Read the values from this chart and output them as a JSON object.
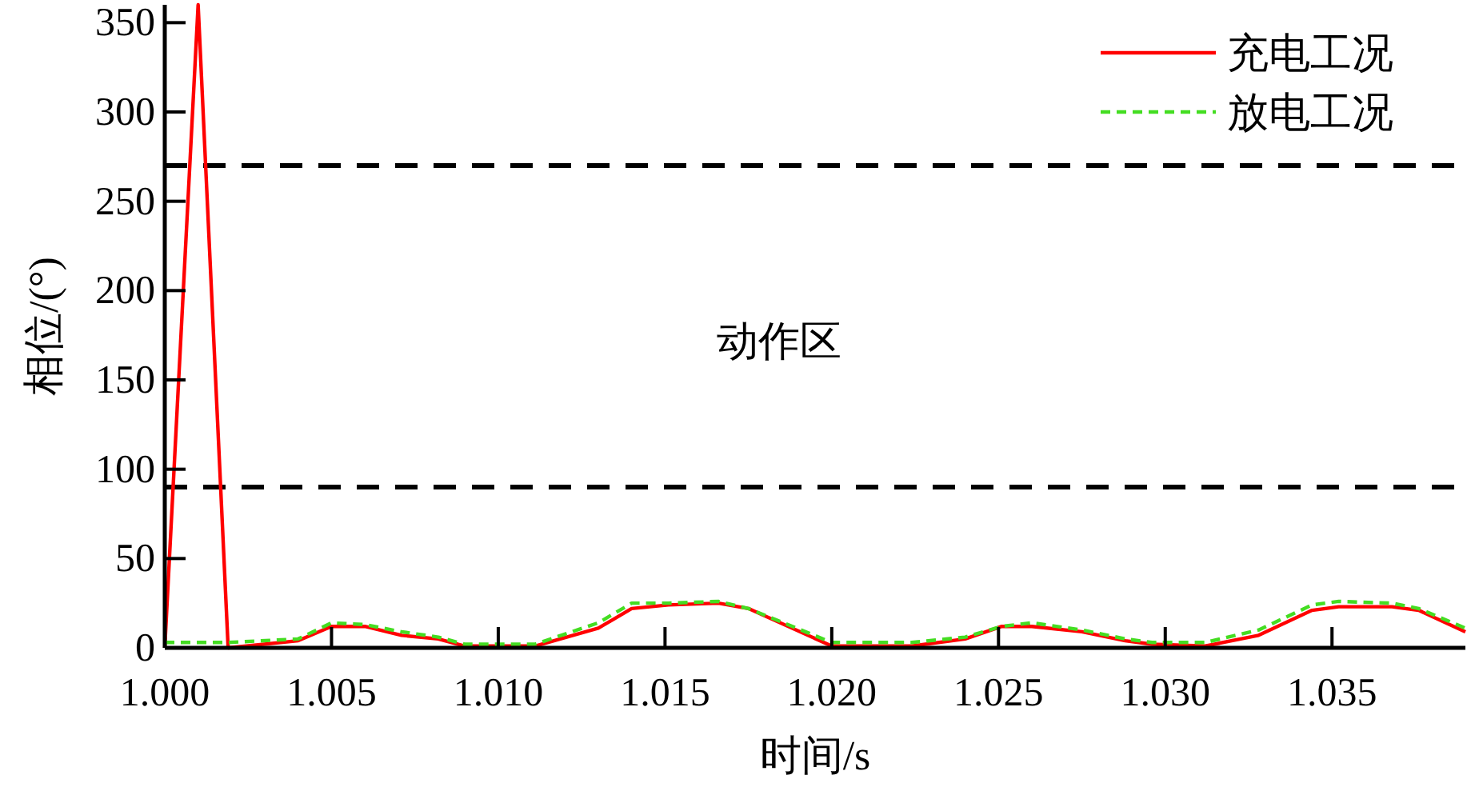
{
  "chart_data": {
    "type": "line",
    "xlabel": "时间/s",
    "ylabel": "相位/(°)",
    "xlim": [
      1.0,
      1.039
    ],
    "ylim": [
      0,
      360
    ],
    "xticks": [
      {
        "value": 1.0,
        "label": "1.000"
      },
      {
        "value": 1.005,
        "label": "1.005"
      },
      {
        "value": 1.01,
        "label": "1.010"
      },
      {
        "value": 1.015,
        "label": "1.015"
      },
      {
        "value": 1.02,
        "label": "1.020"
      },
      {
        "value": 1.025,
        "label": "1.025"
      },
      {
        "value": 1.03,
        "label": "1.030"
      },
      {
        "value": 1.035,
        "label": "1.035"
      }
    ],
    "yticks": [
      0,
      50,
      100,
      150,
      200,
      250,
      300,
      350
    ],
    "grid": false,
    "legend": "top right",
    "marker": "none",
    "ref_lines": [
      {
        "axis": "y",
        "value": 270,
        "color": "#000000",
        "line_style": "dashed"
      },
      {
        "axis": "y",
        "value": 90,
        "color": "#000000",
        "line_style": "dashed"
      }
    ],
    "annotations": [
      "动作区"
    ],
    "series": [
      {
        "name": "充电工况",
        "color": "#ff0000",
        "line_style": "solid",
        "x": [
          1.0,
          1.001,
          1.0019,
          1.004,
          1.005,
          1.006,
          1.0071,
          1.0082,
          1.009,
          1.0111,
          1.013,
          1.014,
          1.0151,
          1.0166,
          1.0175,
          1.02,
          1.0224,
          1.024,
          1.0251,
          1.026,
          1.0275,
          1.0288,
          1.0296,
          1.0312,
          1.0328,
          1.0344,
          1.0352,
          1.0368,
          1.0376,
          1.039
        ],
        "values": [
          0,
          360,
          0,
          4,
          12,
          12,
          7,
          5,
          1,
          1,
          11,
          22,
          24,
          25,
          22,
          1,
          1,
          5,
          12,
          12,
          9,
          4,
          2,
          1,
          7,
          21,
          23,
          23,
          21,
          9
        ]
      },
      {
        "name": "放电工况",
        "color": "#44dd22",
        "line_style": "dashed",
        "x": [
          1.0,
          1.0019,
          1.004,
          1.005,
          1.006,
          1.0071,
          1.0082,
          1.009,
          1.0111,
          1.013,
          1.014,
          1.0151,
          1.0166,
          1.0175,
          1.02,
          1.0224,
          1.024,
          1.0251,
          1.026,
          1.0275,
          1.0288,
          1.0296,
          1.0312,
          1.0328,
          1.0344,
          1.0352,
          1.0368,
          1.0376,
          1.039
        ],
        "values": [
          3,
          3,
          5,
          14,
          13,
          9,
          6,
          2,
          2,
          14,
          25,
          25,
          26,
          22,
          3,
          3,
          6,
          12,
          14,
          10,
          5,
          3,
          3,
          10,
          24,
          26,
          25,
          22,
          11
        ]
      }
    ]
  }
}
